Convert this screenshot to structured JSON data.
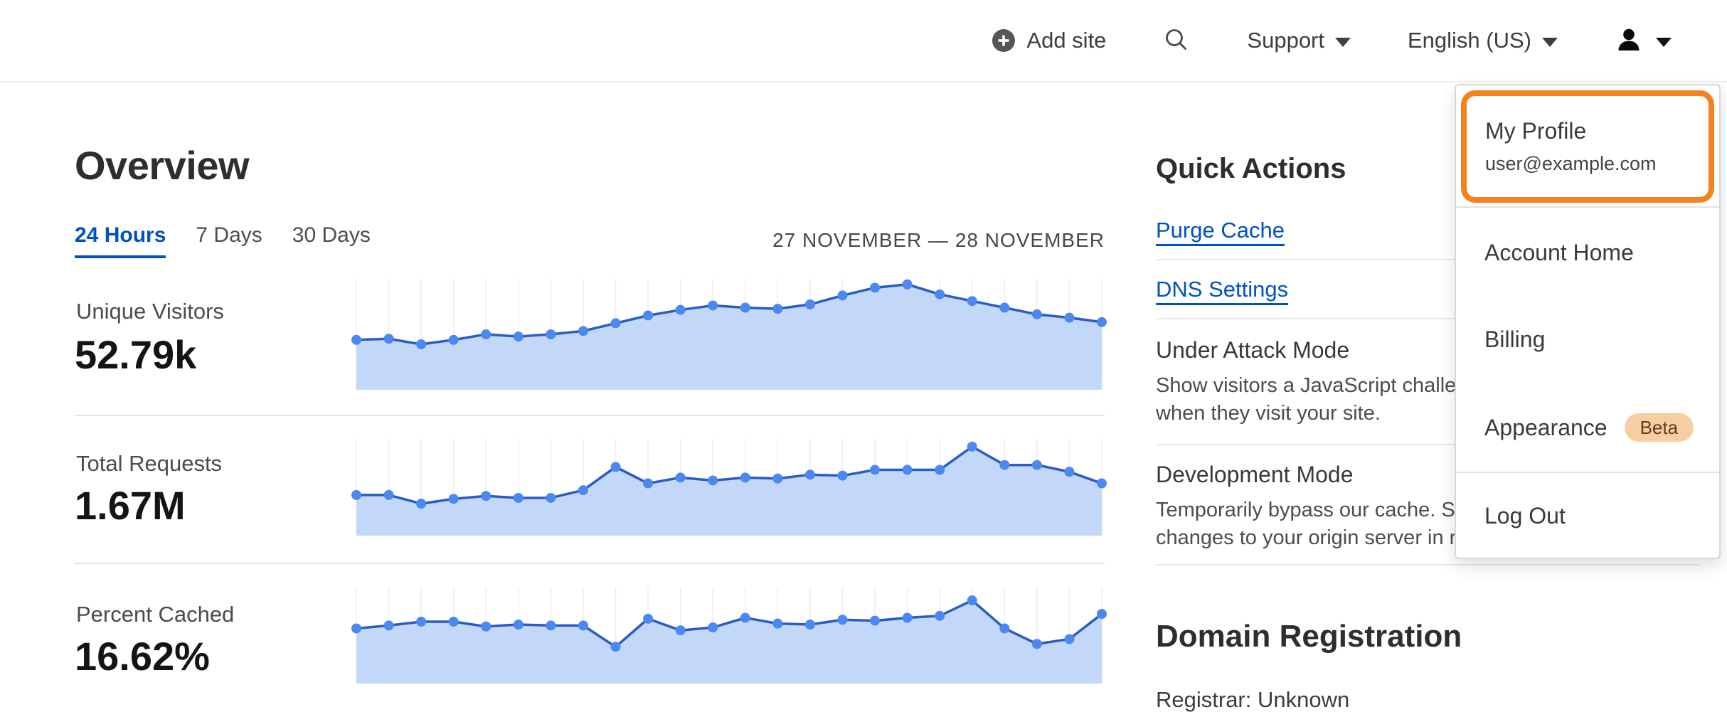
{
  "header": {
    "add_site": "Add site",
    "support": "Support",
    "language": "English (US)"
  },
  "page": {
    "title": "Overview",
    "tabs": [
      {
        "label": "24 Hours",
        "active": true
      },
      {
        "label": "7 Days",
        "active": false
      },
      {
        "label": "30 Days",
        "active": false
      }
    ],
    "date_range": "27 NOVEMBER — 28 NOVEMBER"
  },
  "stats": [
    {
      "label": "Unique Visitors",
      "value": "52.79k"
    },
    {
      "label": "Total Requests",
      "value": "1.67M"
    },
    {
      "label": "Percent Cached",
      "value": "16.62%"
    }
  ],
  "chart_data": [
    {
      "type": "area",
      "metric": "Unique Visitors",
      "total": "52.79k",
      "x_range": "24 hours (27 November — 28 November), 24 points, no axis tick labels shown",
      "y_relative": [
        0.45,
        0.46,
        0.41,
        0.45,
        0.5,
        0.48,
        0.5,
        0.53,
        0.6,
        0.67,
        0.72,
        0.76,
        0.74,
        0.73,
        0.77,
        0.85,
        0.92,
        0.95,
        0.86,
        0.8,
        0.74,
        0.68,
        0.65,
        0.61
      ],
      "grid": "vertical gridlines at each point",
      "legend": "none"
    },
    {
      "type": "area",
      "metric": "Total Requests",
      "total": "1.67M",
      "x_range": "24 hours (27 November — 28 November), 24 points, no axis tick labels shown",
      "y_relative": [
        0.42,
        0.42,
        0.33,
        0.38,
        0.41,
        0.39,
        0.39,
        0.47,
        0.71,
        0.54,
        0.6,
        0.57,
        0.6,
        0.59,
        0.63,
        0.62,
        0.68,
        0.68,
        0.68,
        0.92,
        0.73,
        0.73,
        0.66,
        0.54
      ],
      "grid": "vertical gridlines at each point",
      "legend": "none"
    },
    {
      "type": "area",
      "metric": "Percent Cached",
      "total": "16.62%",
      "x_range": "24 hours (27 November — 28 November), 24 points, no axis tick labels shown",
      "y_relative": [
        0.57,
        0.6,
        0.64,
        0.64,
        0.59,
        0.61,
        0.6,
        0.6,
        0.38,
        0.67,
        0.55,
        0.58,
        0.68,
        0.62,
        0.61,
        0.66,
        0.65,
        0.68,
        0.7,
        0.86,
        0.57,
        0.41,
        0.46,
        0.72
      ],
      "grid": "vertical gridlines at each point",
      "legend": "none"
    }
  ],
  "quick_actions": {
    "title": "Quick Actions",
    "links": [
      {
        "label": "Purge Cache"
      },
      {
        "label": "DNS Settings"
      }
    ],
    "under_attack": {
      "title": "Under Attack Mode",
      "desc_line1": "Show visitors a JavaScript challenge",
      "desc_line2": "when they visit your site."
    },
    "development": {
      "title": "Development Mode",
      "desc_line1": "Temporarily bypass our cache. See",
      "desc_line2": "changes to your origin server in realtime."
    }
  },
  "domain_registration": {
    "title": "Domain Registration",
    "registrar": "Registrar: Unknown"
  },
  "user_menu": {
    "profile": {
      "label": "My Profile",
      "email": "user@example.com"
    },
    "items": [
      {
        "label": "Account Home"
      },
      {
        "label": "Billing"
      }
    ],
    "appearance": {
      "label": "Appearance",
      "badge": "Beta"
    },
    "logout": "Log Out"
  },
  "colors": {
    "accent_orange": "#f6821f",
    "link_blue": "#0051c3",
    "chart_line": "#2a5cc4",
    "chart_dot": "#4b88f0",
    "chart_fill": "#c3d8f8",
    "beta_badge_bg": "#f7cda2"
  }
}
